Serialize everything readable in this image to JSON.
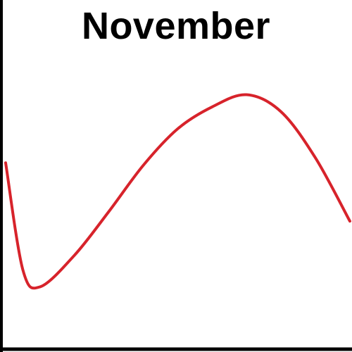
{
  "chart_data": {
    "type": "line",
    "title": "November",
    "xlabel": "",
    "ylabel": "",
    "grid": false,
    "legend": "none",
    "series": [
      {
        "color": "#d7232b",
        "x": [
          0,
          0.05,
          0.1,
          0.2,
          0.3,
          0.4,
          0.5,
          0.6,
          0.7,
          0.8,
          0.9,
          1.0
        ],
        "y": [
          0.72,
          0.28,
          0.21,
          0.34,
          0.52,
          0.71,
          0.86,
          0.95,
          1.0,
          0.93,
          0.74,
          0.48
        ]
      }
    ],
    "xlim": [
      0,
      1
    ],
    "ylim": [
      0,
      1.1
    ]
  },
  "colors": {
    "axis": "#000000",
    "line": "#d7232b",
    "background": "#ffffff"
  }
}
